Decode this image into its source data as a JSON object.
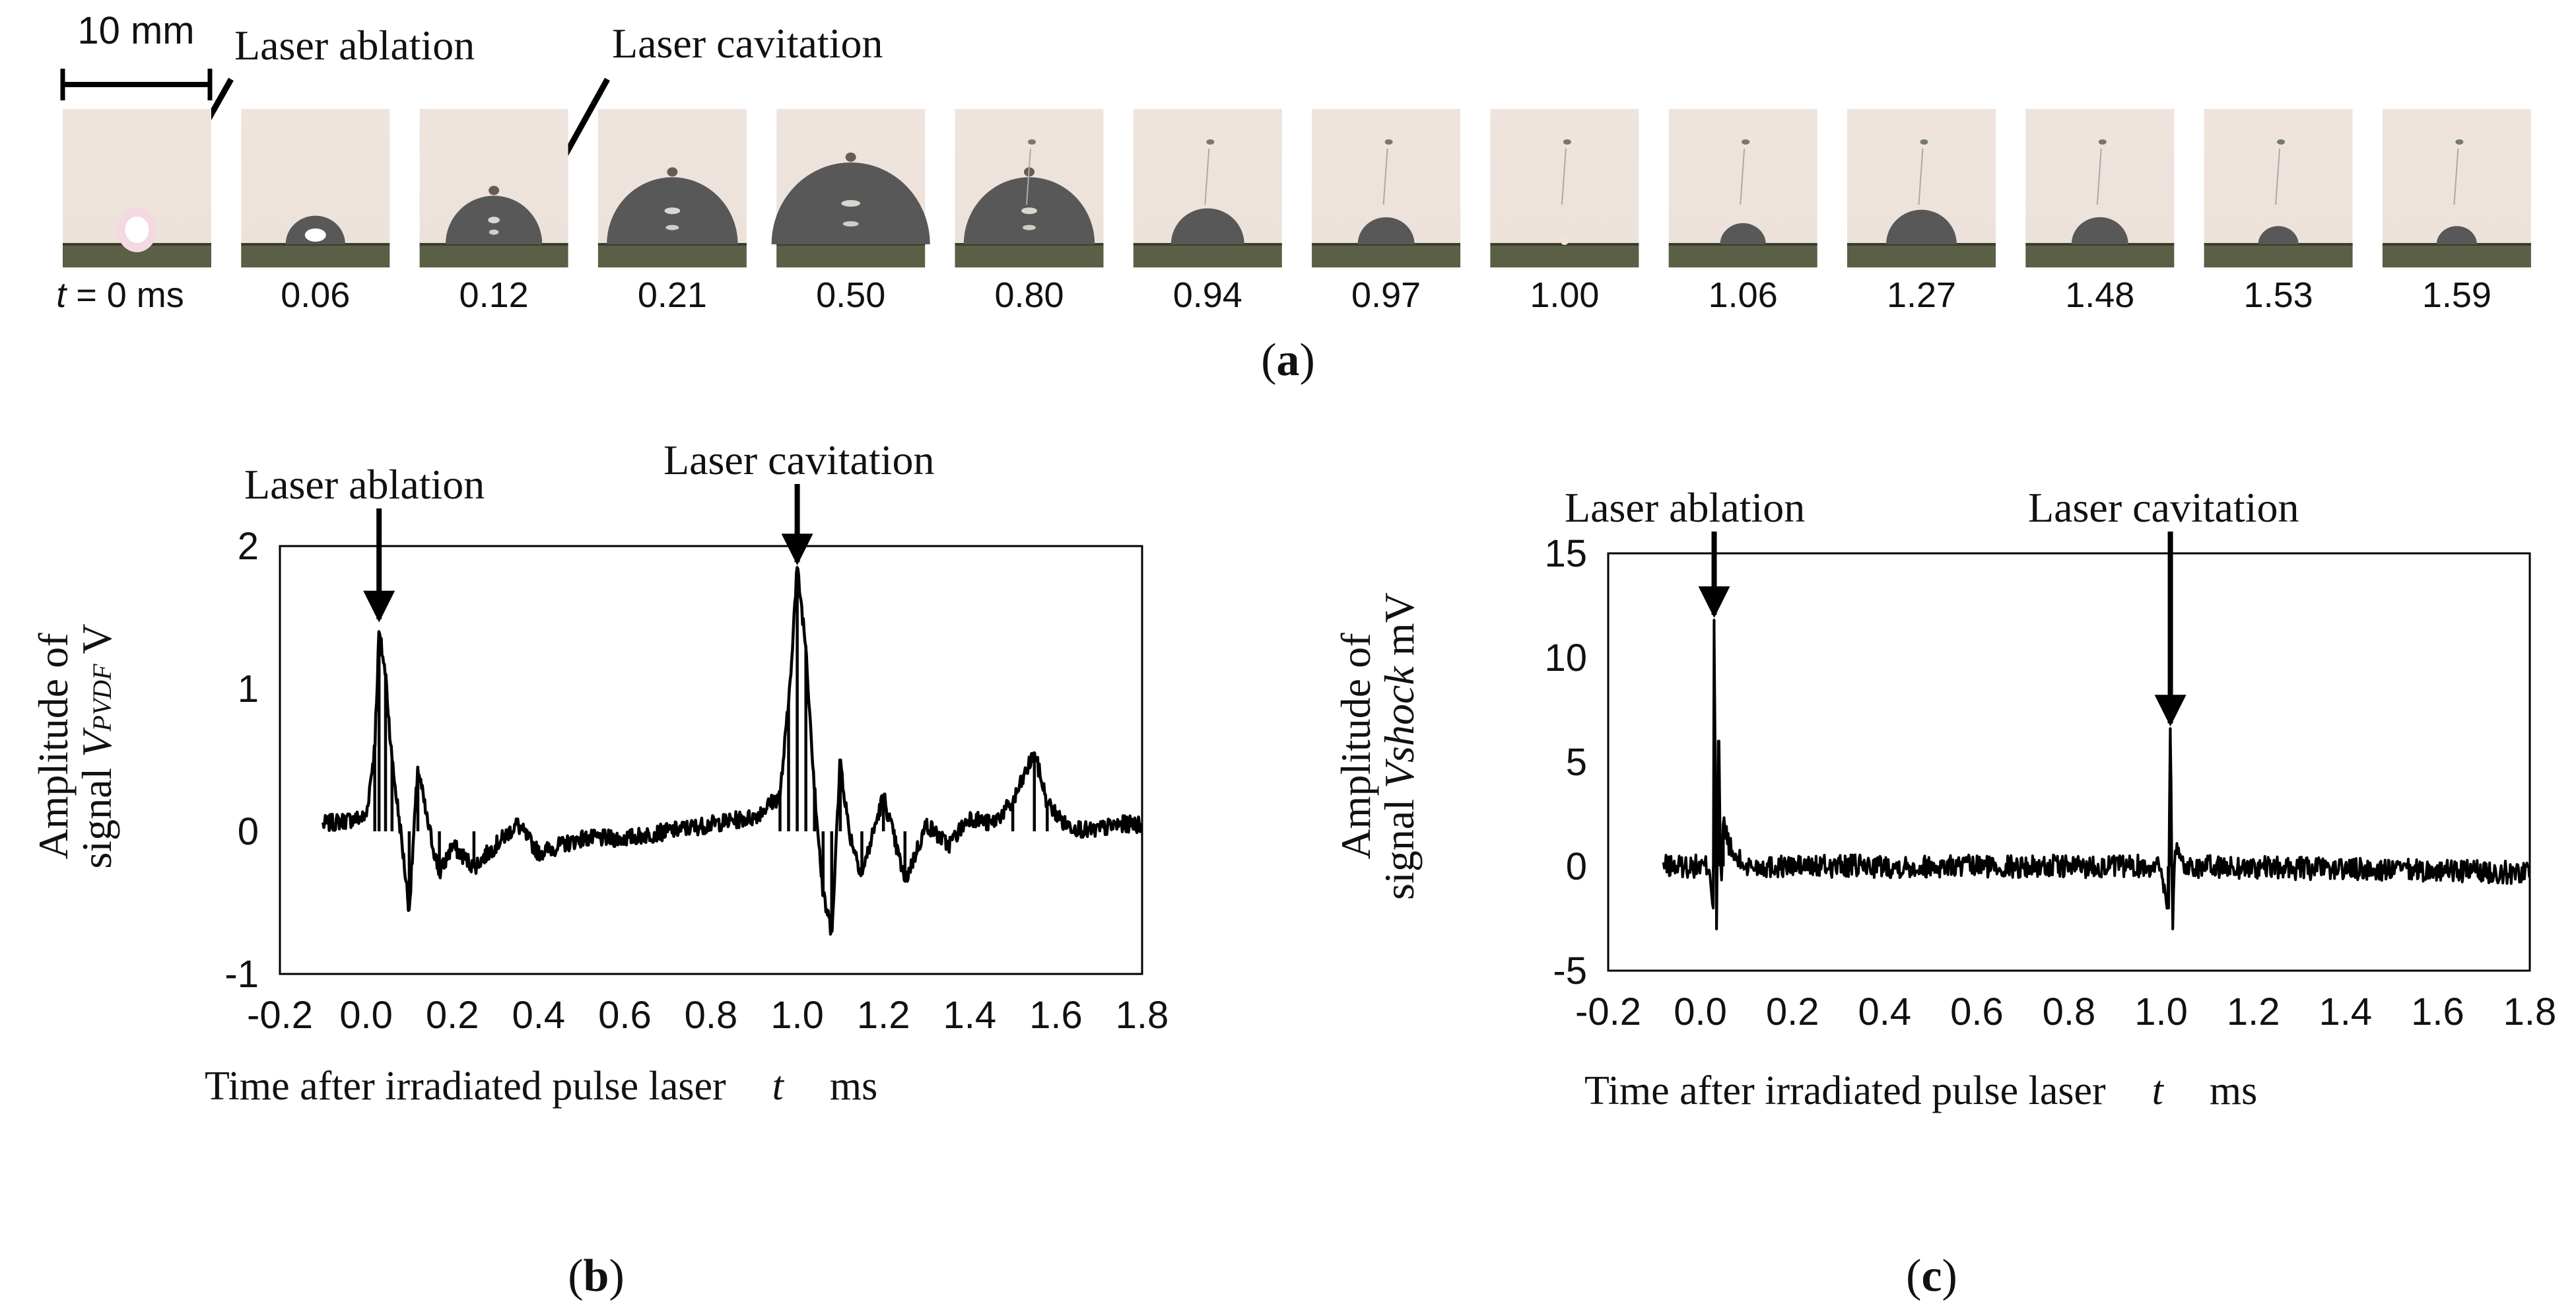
{
  "panel_a": {
    "scale_bar": "10 mm",
    "annotations": {
      "ablation": "Laser ablation",
      "cavitation": "Laser cavitation"
    },
    "first_time_prefix": "t",
    "first_time_rest": " = 0 ms",
    "frames": [
      {
        "time": "0",
        "label": "",
        "stage": "ablation",
        "dome": 0.0
      },
      {
        "time": "0.06",
        "label": "0.06",
        "stage": "spark",
        "dome": 0.28
      },
      {
        "time": "0.12",
        "label": "0.12",
        "stage": "dome",
        "dome": 0.55
      },
      {
        "time": "0.21",
        "label": "0.21",
        "stage": "dome",
        "dome": 0.8
      },
      {
        "time": "0.50",
        "label": "0.50",
        "stage": "dome",
        "dome": 1.0
      },
      {
        "time": "0.80",
        "label": "0.80",
        "stage": "dome",
        "dome": 0.8
      },
      {
        "time": "0.94",
        "label": "0.94",
        "stage": "dome",
        "dome": 0.38
      },
      {
        "time": "0.97",
        "label": "0.97",
        "stage": "dome",
        "dome": 0.26
      },
      {
        "time": "1.00",
        "label": "1.00",
        "stage": "collapse",
        "dome": 0.0
      },
      {
        "time": "1.06",
        "label": "1.06",
        "stage": "dome",
        "dome": 0.18
      },
      {
        "time": "1.27",
        "label": "1.27",
        "stage": "dome",
        "dome": 0.36
      },
      {
        "time": "1.48",
        "label": "1.48",
        "stage": "dome",
        "dome": 0.26
      },
      {
        "time": "1.53",
        "label": "1.53",
        "stage": "dome",
        "dome": 0.14
      },
      {
        "time": "1.59",
        "label": "1.59",
        "stage": "dome",
        "dome": 0.14
      }
    ],
    "caption_letter": "a"
  },
  "chart_data": [
    {
      "id": "b",
      "type": "line",
      "caption_letter": "b",
      "xlabel": "Time after irradiated pulse laser",
      "xvar": "t",
      "xunit": "ms",
      "ylabel_line1": "Amplitude of",
      "ylabel_line2_prefix": "signal ",
      "ylabel_var": "V",
      "ylabel_sub": "PVDF",
      "ylabel_unit": " V",
      "xlim": [
        -0.2,
        1.8
      ],
      "ylim": [
        -1,
        2
      ],
      "xticks": [
        "-0.2",
        "0.0",
        "0.2",
        "0.4",
        "0.6",
        "0.8",
        "1.0",
        "1.2",
        "1.4",
        "1.6",
        "1.8"
      ],
      "yticks": [
        "-1",
        "0",
        "1",
        "2"
      ],
      "annotations": [
        {
          "text": "Laser ablation",
          "x": 0.03,
          "y": 1.45
        },
        {
          "text": "Laser cavitation",
          "x": 1.0,
          "y": 1.85
        }
      ],
      "series": [
        {
          "name": "V_PVDF",
          "noise": 0.06,
          "points": [
            [
              -0.1,
              0.05
            ],
            [
              0.0,
              0.1
            ],
            [
              0.02,
              0.6
            ],
            [
              0.03,
              1.4
            ],
            [
              0.045,
              1.1
            ],
            [
              0.06,
              0.5
            ],
            [
              0.08,
              0.0
            ],
            [
              0.1,
              -0.55
            ],
            [
              0.12,
              0.45
            ],
            [
              0.14,
              0.1
            ],
            [
              0.17,
              -0.3
            ],
            [
              0.2,
              -0.1
            ],
            [
              0.25,
              -0.25
            ],
            [
              0.3,
              -0.1
            ],
            [
              0.35,
              0.05
            ],
            [
              0.4,
              -0.15
            ],
            [
              0.5,
              -0.05
            ],
            [
              0.6,
              -0.05
            ],
            [
              0.7,
              0.0
            ],
            [
              0.8,
              0.05
            ],
            [
              0.9,
              0.1
            ],
            [
              0.96,
              0.25
            ],
            [
              0.98,
              0.9
            ],
            [
              1.0,
              1.85
            ],
            [
              1.02,
              1.3
            ],
            [
              1.04,
              0.3
            ],
            [
              1.06,
              -0.45
            ],
            [
              1.08,
              -0.7
            ],
            [
              1.1,
              0.5
            ],
            [
              1.12,
              0.0
            ],
            [
              1.15,
              -0.3
            ],
            [
              1.2,
              0.25
            ],
            [
              1.25,
              -0.35
            ],
            [
              1.3,
              0.05
            ],
            [
              1.35,
              -0.1
            ],
            [
              1.4,
              0.1
            ],
            [
              1.45,
              0.05
            ],
            [
              1.5,
              0.2
            ],
            [
              1.55,
              0.55
            ],
            [
              1.58,
              0.2
            ],
            [
              1.62,
              0.05
            ],
            [
              1.68,
              0.0
            ],
            [
              1.75,
              0.05
            ],
            [
              1.8,
              0.05
            ]
          ]
        }
      ]
    },
    {
      "id": "c",
      "type": "line",
      "caption_letter": "c",
      "xlabel": "Time after irradiated pulse laser",
      "xvar": "t",
      "xunit": "ms",
      "ylabel_line1": "Amplitude of",
      "ylabel_line2_prefix": "signal ",
      "ylabel_var": "Vshock",
      "ylabel_sub": "",
      "ylabel_unit": " mV",
      "xlim": [
        -0.2,
        1.8
      ],
      "ylim": [
        -5,
        15
      ],
      "xticks": [
        "-0.2",
        "0.0",
        "0.2",
        "0.4",
        "0.6",
        "0.8",
        "1.0",
        "1.2",
        "1.4",
        "1.6",
        "1.8"
      ],
      "yticks": [
        "-5",
        "0",
        "5",
        "10",
        "15"
      ],
      "annotations": [
        {
          "text": "Laser ablation",
          "x": 0.03,
          "y": 11.8
        },
        {
          "text": "Laser cavitation",
          "x": 1.02,
          "y": 6.6
        }
      ],
      "series": [
        {
          "name": "Vshock",
          "noise": 0.55,
          "points": [
            [
              -0.08,
              0.0
            ],
            [
              0.02,
              0.0
            ],
            [
              0.028,
              -2.0
            ],
            [
              0.03,
              11.8
            ],
            [
              0.035,
              -3.0
            ],
            [
              0.04,
              6.0
            ],
            [
              0.045,
              -1.5
            ],
            [
              0.05,
              2.0
            ],
            [
              0.07,
              0.5
            ],
            [
              0.1,
              0.0
            ],
            [
              0.5,
              0.0
            ],
            [
              1.0,
              0.0
            ],
            [
              1.015,
              -2.0
            ],
            [
              1.02,
              6.6
            ],
            [
              1.025,
              -3.0
            ],
            [
              1.03,
              1.0
            ],
            [
              1.05,
              0.0
            ],
            [
              1.8,
              -0.3
            ]
          ]
        }
      ]
    }
  ]
}
